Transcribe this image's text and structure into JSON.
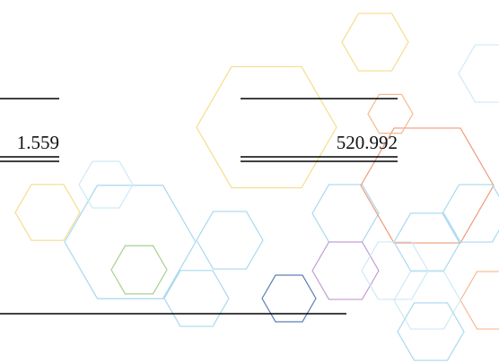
{
  "cells": [
    "1.559",
    "520.992"
  ]
}
